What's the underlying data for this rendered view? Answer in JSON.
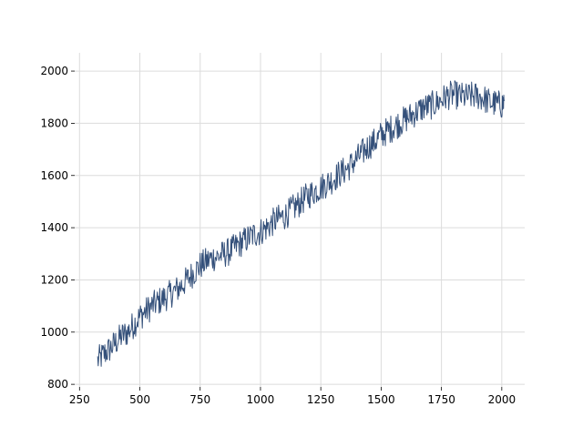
{
  "colors": {
    "line": "#34507a",
    "grid": "#dcdcdc",
    "axis": "#000000",
    "background": "#ffffff"
  },
  "chart_data": {
    "type": "line",
    "title": "",
    "xlabel": "",
    "ylabel": "",
    "xlim": [
      230,
      2095
    ],
    "ylim": [
      790,
      2070
    ],
    "grid": true,
    "x_ticks": [
      250,
      500,
      750,
      1000,
      1250,
      1500,
      1750,
      2000
    ],
    "y_ticks": [
      800,
      1000,
      1200,
      1400,
      1600,
      1800,
      2000
    ],
    "series": [
      {
        "x": [
          325,
          350,
          375,
          400,
          425,
          450,
          475,
          500,
          525,
          550,
          575,
          600,
          625,
          650,
          675,
          700,
          725,
          750,
          775,
          800,
          825,
          850,
          875,
          900,
          925,
          950,
          975,
          1000,
          1025,
          1050,
          1075,
          1100,
          1125,
          1150,
          1175,
          1200,
          1225,
          1250,
          1275,
          1300,
          1325,
          1350,
          1375,
          1400,
          1425,
          1450,
          1475,
          1500,
          1525,
          1550,
          1575,
          1600,
          1625,
          1650,
          1675,
          1700,
          1725,
          1750,
          1775,
          1800,
          1825,
          1850,
          1875,
          1900,
          1925,
          1950,
          1975,
          2000,
          2010
        ],
        "y": [
          890,
          915,
          935,
          960,
          985,
          1000,
          1030,
          1060,
          1080,
          1100,
          1115,
          1130,
          1145,
          1160,
          1180,
          1205,
          1230,
          1255,
          1270,
          1285,
          1290,
          1300,
          1310,
          1330,
          1345,
          1360,
          1375,
          1385,
          1400,
          1420,
          1435,
          1445,
          1465,
          1485,
          1505,
          1525,
          1540,
          1555,
          1570,
          1585,
          1605,
          1620,
          1640,
          1665,
          1690,
          1715,
          1730,
          1755,
          1770,
          1785,
          1800,
          1815,
          1830,
          1845,
          1860,
          1865,
          1875,
          1890,
          1905,
          1910,
          1905,
          1900,
          1905,
          1905,
          1895,
          1880,
          1875,
          1870,
          1885
        ]
      }
    ]
  }
}
